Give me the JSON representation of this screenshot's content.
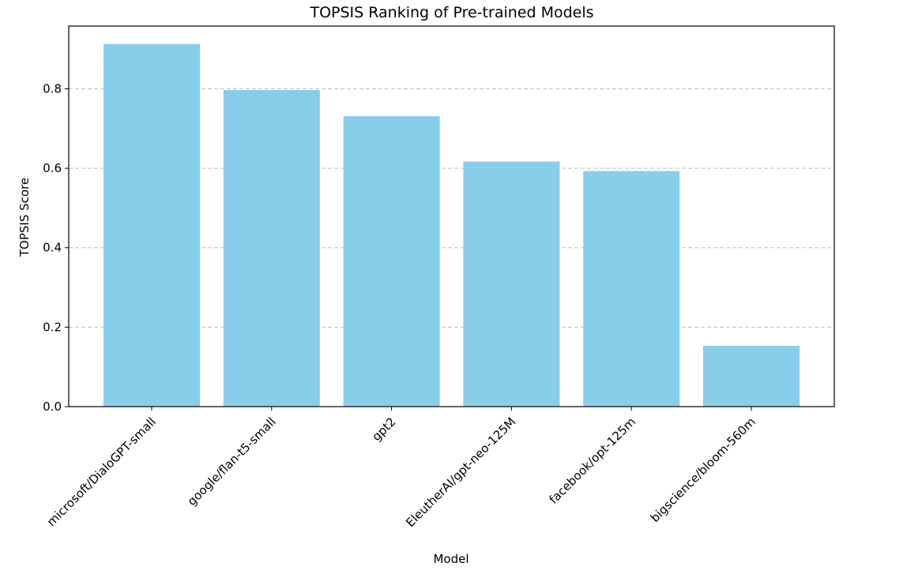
{
  "chart_data": {
    "type": "bar",
    "title": "TOPSIS Ranking of Pre-trained Models",
    "xlabel": "Model",
    "ylabel": "TOPSIS Score",
    "categories": [
      "microsoft/DialoGPT-small",
      "google/flan-t5-small",
      "gpt2",
      "EleutherAI/gpt-neo-125M",
      "facebook/opt-125m",
      "bigscience/bloom-560m"
    ],
    "values": [
      0.913,
      0.797,
      0.731,
      0.617,
      0.593,
      0.153
    ],
    "ylim": [
      0,
      0.958
    ],
    "yticks": [
      0.0,
      0.2,
      0.4,
      0.6,
      0.8
    ],
    "ytick_labels": [
      "0.0",
      "0.2",
      "0.4",
      "0.6",
      "0.8"
    ],
    "grid": "y-dashed",
    "colors": {
      "bar": "#87ceeb",
      "grid": "#c0c0c0",
      "axis": "#000000"
    }
  }
}
